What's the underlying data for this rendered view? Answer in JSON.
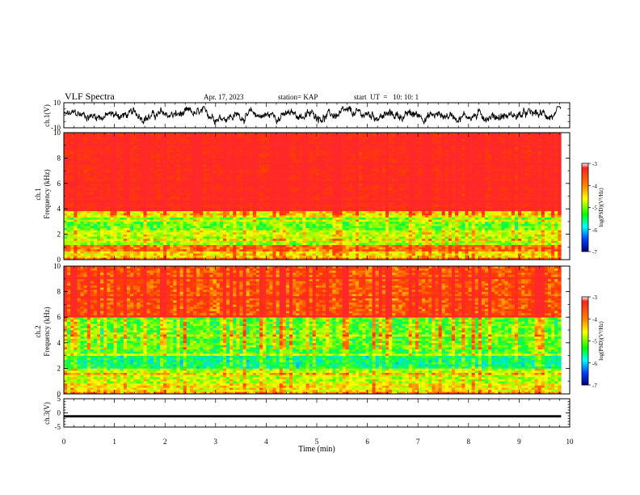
{
  "header": {
    "title": "VLF Spectra",
    "date": "Apr. 17, 2023",
    "station": "station= KAP",
    "start": "start  UT  =   10: 10: 1"
  },
  "panels": {
    "ch1_wave_label": "ch.1(V)",
    "ch1_spec_label": "ch.1\nFrequency (kHz)",
    "ch2_spec_label": "ch.2\nFrequency (kHz)",
    "ch3_wave_label": "ch.3(V)",
    "x_axis_label": "Time (min)"
  },
  "colorbar": {
    "label": "log(PSD)(V²/Hz)",
    "ticks": [
      -3,
      -4,
      -5,
      -6,
      -7
    ],
    "colors": [
      "#ff0000",
      "#ff8c00",
      "#ffff00",
      "#00ff00",
      "#00ffff",
      "#0050ff",
      "#000080"
    ]
  },
  "chart_data": [
    {
      "type": "line",
      "name": "ch1-waveform",
      "ylabel": "ch.1(V)",
      "ylim": [
        -10,
        10
      ],
      "yticks": [
        10,
        -10
      ],
      "xlim": [
        0,
        9.83
      ],
      "description_values": {
        "baseline": 0,
        "approx_amplitude": 4
      }
    },
    {
      "type": "heatmap",
      "name": "ch1-spectrogram",
      "ylabel": "Frequency (kHz)",
      "ylim": [
        0,
        10
      ],
      "yticks": [
        0,
        2,
        4,
        6,
        8,
        10
      ],
      "xlim": [
        0,
        9.83
      ],
      "bands": [
        {
          "from": 0.0,
          "to": 0.6,
          "level": -4.5
        },
        {
          "from": 0.6,
          "to": 1.2,
          "level": -4.0
        },
        {
          "from": 1.2,
          "to": 1.9,
          "level": -5.0
        },
        {
          "from": 1.9,
          "to": 2.3,
          "level": -4.8
        },
        {
          "from": 2.3,
          "to": 3.3,
          "level": -5.2
        },
        {
          "from": 3.3,
          "to": 3.8,
          "level": -4.6
        },
        {
          "from": 3.8,
          "to": 10.0,
          "level": -3.3
        }
      ]
    },
    {
      "type": "heatmap",
      "name": "ch2-spectrogram",
      "ylabel": "Frequency (kHz)",
      "ylim": [
        0,
        10
      ],
      "yticks": [
        0,
        2,
        4,
        6,
        8,
        10
      ],
      "xlim": [
        0,
        9.83
      ],
      "bands": [
        {
          "from": 0.0,
          "to": 0.8,
          "level": -4.6
        },
        {
          "from": 0.8,
          "to": 2.0,
          "level": -4.9
        },
        {
          "from": 2.0,
          "to": 3.0,
          "level": -5.6
        },
        {
          "from": 3.0,
          "to": 6.0,
          "level": -5.3
        },
        {
          "from": 6.0,
          "to": 10.0,
          "level": -3.9
        }
      ]
    },
    {
      "type": "line",
      "name": "ch3-waveform",
      "ylabel": "ch.3(V)",
      "ylim": [
        -5,
        5
      ],
      "yticks": [
        5,
        0,
        -5
      ],
      "xlim": [
        0,
        9.83
      ],
      "description_values": {
        "baseline": -1.2,
        "approx_amplitude": 0.4
      }
    }
  ],
  "x_axis": {
    "label": "Time (min)",
    "ticks": [
      0,
      1,
      2,
      3,
      4,
      5,
      6,
      7,
      8,
      9,
      10
    ]
  }
}
